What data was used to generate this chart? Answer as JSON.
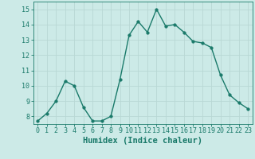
{
  "x": [
    0,
    1,
    2,
    3,
    4,
    5,
    6,
    7,
    8,
    9,
    10,
    11,
    12,
    13,
    14,
    15,
    16,
    17,
    18,
    19,
    20,
    21,
    22,
    23
  ],
  "y": [
    7.7,
    8.2,
    9.0,
    10.3,
    10.0,
    8.6,
    7.7,
    7.7,
    8.0,
    10.4,
    13.3,
    14.2,
    13.5,
    15.0,
    13.9,
    14.0,
    13.5,
    12.9,
    12.8,
    12.5,
    10.7,
    9.4,
    8.9,
    8.5
  ],
  "xlabel": "Humidex (Indice chaleur)",
  "ylim": [
    7.5,
    15.5
  ],
  "xlim": [
    -0.5,
    23.5
  ],
  "yticks": [
    8,
    9,
    10,
    11,
    12,
    13,
    14,
    15
  ],
  "xticks": [
    0,
    1,
    2,
    3,
    4,
    5,
    6,
    7,
    8,
    9,
    10,
    11,
    12,
    13,
    14,
    15,
    16,
    17,
    18,
    19,
    20,
    21,
    22,
    23
  ],
  "line_color": "#1a7a6a",
  "marker_size": 2.5,
  "bg_color": "#cceae7",
  "grid_color": "#b8d8d4",
  "label_color": "#1a7a6a",
  "font_size_xlabel": 7.5,
  "font_size_ticks": 6.0,
  "linewidth": 1.0
}
